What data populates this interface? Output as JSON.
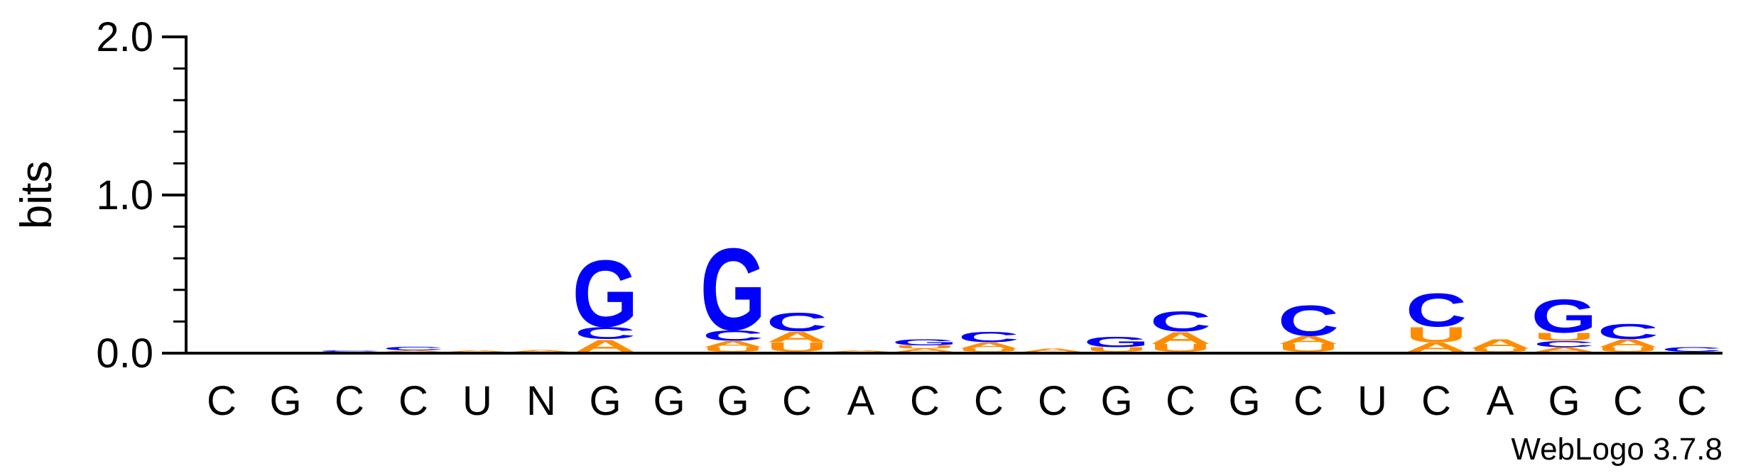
{
  "chart_data": {
    "type": "sequence-logo",
    "ylabel": "bits",
    "ylim": [
      0,
      2.0
    ],
    "yticks": [
      "0.0",
      "1.0",
      "2.0"
    ],
    "x_labels": [
      "C",
      "G",
      "C",
      "C",
      "U",
      "N",
      "G",
      "G",
      "G",
      "C",
      "A",
      "C",
      "C",
      "C",
      "G",
      "C",
      "G",
      "C",
      "U",
      "C",
      "A",
      "G",
      "C",
      "C"
    ],
    "colors": {
      "G": "#0000ff",
      "C": "#0000ff",
      "A": "#ff8c00",
      "U": "#ff8c00"
    },
    "positions": [
      {
        "stack": []
      },
      {
        "stack": []
      },
      {
        "stack": [
          {
            "letter": "C",
            "height": 0.01
          }
        ]
      },
      {
        "stack": [
          {
            "letter": "A",
            "height": 0.01
          },
          {
            "letter": "C",
            "height": 0.025
          }
        ]
      },
      {
        "stack": [
          {
            "letter": "A",
            "height": 0.01
          }
        ]
      },
      {
        "stack": [
          {
            "letter": "A",
            "height": 0.012
          }
        ]
      },
      {
        "stack": [
          {
            "letter": "A",
            "height": 0.08
          },
          {
            "letter": "C",
            "height": 0.08
          },
          {
            "letter": "G",
            "height": 0.44
          }
        ]
      },
      {
        "stack": []
      },
      {
        "stack": [
          {
            "letter": "U",
            "height": 0.03
          },
          {
            "letter": "A",
            "height": 0.04
          },
          {
            "letter": "C",
            "height": 0.07
          },
          {
            "letter": "G",
            "height": 0.54
          }
        ]
      },
      {
        "stack": [
          {
            "letter": "U",
            "height": 0.06
          },
          {
            "letter": "A",
            "height": 0.07
          },
          {
            "letter": "C",
            "height": 0.12
          }
        ]
      },
      {
        "stack": [
          {
            "letter": "A",
            "height": 0.008
          }
        ]
      },
      {
        "stack": [
          {
            "letter": "A",
            "height": 0.02
          },
          {
            "letter": "U",
            "height": 0.02
          },
          {
            "letter": "G",
            "height": 0.04
          }
        ]
      },
      {
        "stack": [
          {
            "letter": "U",
            "height": 0.02
          },
          {
            "letter": "A",
            "height": 0.04
          },
          {
            "letter": "C",
            "height": 0.07
          }
        ]
      },
      {
        "stack": [
          {
            "letter": "A",
            "height": 0.02
          }
        ]
      },
      {
        "stack": [
          {
            "letter": "U",
            "height": 0.03
          },
          {
            "letter": "G",
            "height": 0.07
          }
        ]
      },
      {
        "stack": [
          {
            "letter": "U",
            "height": 0.05
          },
          {
            "letter": "A",
            "height": 0.08
          },
          {
            "letter": "C",
            "height": 0.13
          }
        ]
      },
      {
        "stack": []
      },
      {
        "stack": [
          {
            "letter": "U",
            "height": 0.05
          },
          {
            "letter": "A",
            "height": 0.05
          },
          {
            "letter": "C",
            "height": 0.2
          }
        ]
      },
      {
        "stack": []
      },
      {
        "stack": [
          {
            "letter": "A",
            "height": 0.06
          },
          {
            "letter": "U",
            "height": 0.1
          },
          {
            "letter": "C",
            "height": 0.22
          }
        ]
      },
      {
        "stack": [
          {
            "letter": "U",
            "height": 0.02
          },
          {
            "letter": "A",
            "height": 0.06
          }
        ]
      },
      {
        "stack": [
          {
            "letter": "A",
            "height": 0.03
          },
          {
            "letter": "C",
            "height": 0.04
          },
          {
            "letter": "U",
            "height": 0.05
          },
          {
            "letter": "G",
            "height": 0.22
          }
        ]
      },
      {
        "stack": [
          {
            "letter": "U",
            "height": 0.03
          },
          {
            "letter": "A",
            "height": 0.05
          },
          {
            "letter": "C",
            "height": 0.1
          }
        ]
      },
      {
        "stack": [
          {
            "letter": "C",
            "height": 0.03
          }
        ]
      }
    ]
  },
  "credit": "WebLogo 3.7.8"
}
